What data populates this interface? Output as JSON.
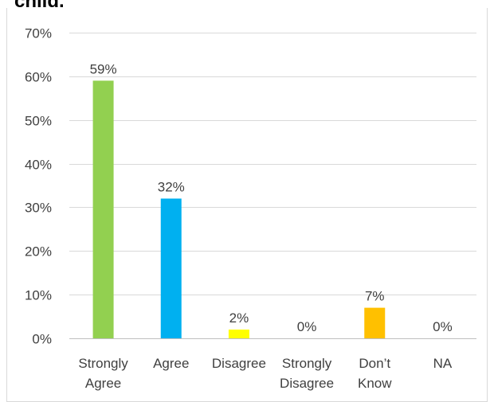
{
  "chart_data": {
    "type": "bar",
    "title": "child.",
    "categories": [
      [
        "Strongly",
        "Agree"
      ],
      [
        "Agree"
      ],
      [
        "Disagree"
      ],
      [
        "Strongly",
        "Disagree"
      ],
      [
        "Don’t",
        "Know"
      ],
      [
        "NA"
      ]
    ],
    "values": [
      59,
      32,
      2,
      0,
      7,
      0
    ],
    "data_labels": [
      "59%",
      "32%",
      "2%",
      "0%",
      "7%",
      "0%"
    ],
    "colors": [
      "#92d050",
      "#00b0f0",
      "#ffff00",
      "#ffc000",
      "#ffc000",
      "#ffc000"
    ],
    "ylim": [
      0,
      70
    ],
    "yticks": [
      0,
      10,
      20,
      30,
      40,
      50,
      60,
      70
    ],
    "ytick_labels": [
      "0%",
      "10%",
      "20%",
      "30%",
      "40%",
      "50%",
      "60%",
      "70%"
    ],
    "xlabel": "",
    "ylabel": "",
    "grid": true,
    "legend": "none"
  }
}
